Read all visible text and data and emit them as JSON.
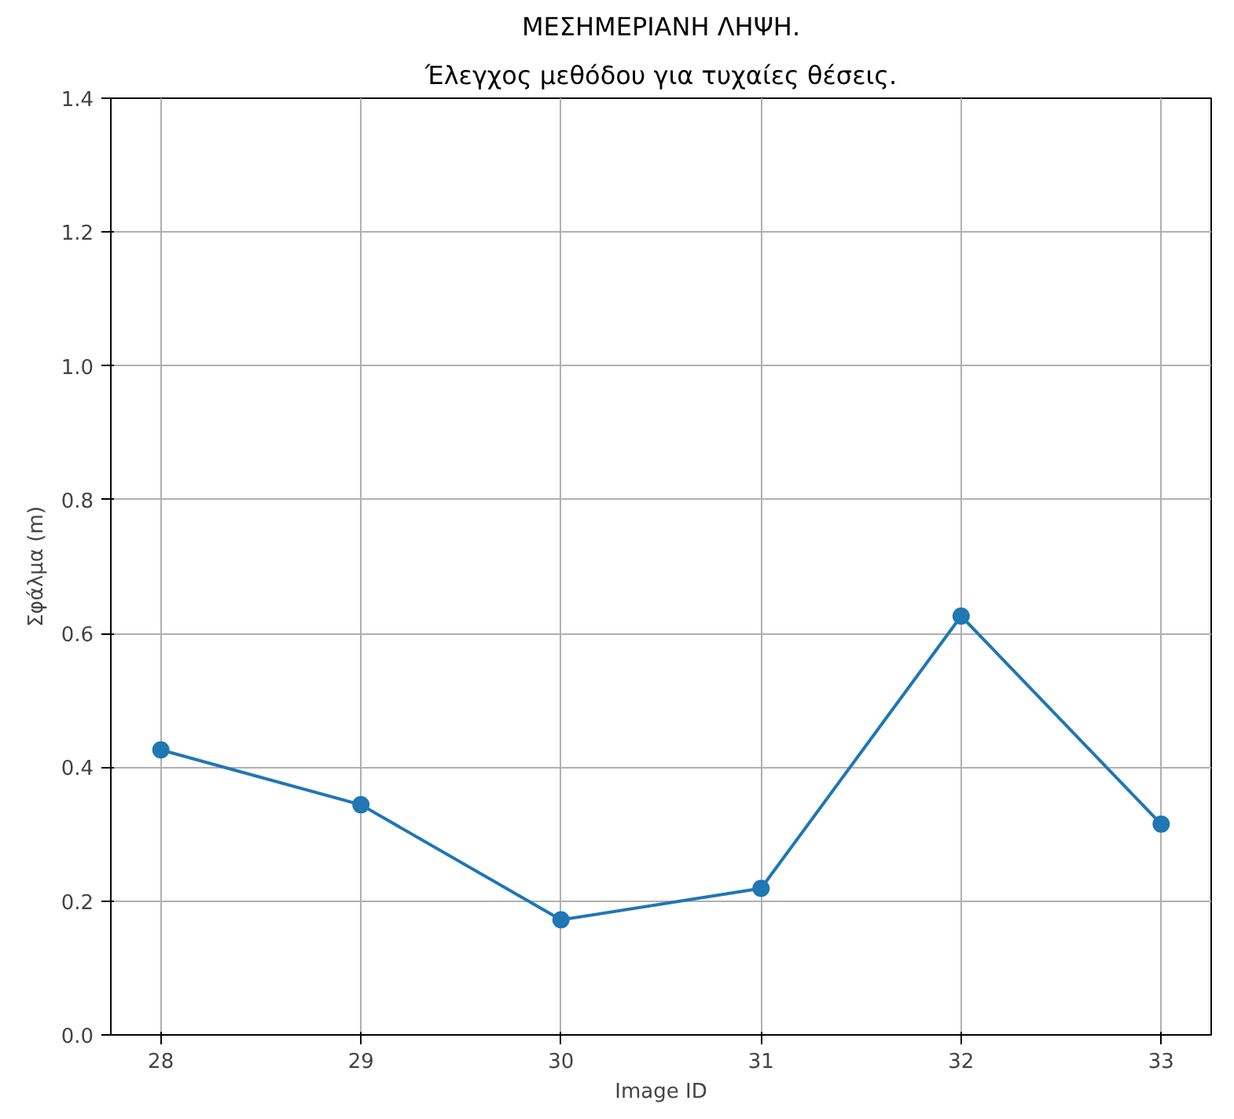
{
  "chart_data": {
    "type": "line",
    "title": "ΜΕΣΗΜΕΡΙΑΝΗ ΛΗΨΗ.",
    "subtitle": "Έλεγχος μεθόδου για τυχαίες θέσεις.",
    "xlabel": "Image ID",
    "ylabel": "Σφάλμα (m)",
    "x": [
      28,
      29,
      30,
      31,
      32,
      33
    ],
    "series": [
      {
        "color": "#1f77b4",
        "values": [
          0.426,
          0.344,
          0.172,
          0.219,
          0.626,
          0.315
        ]
      }
    ],
    "xlim": [
      27.75,
      33.25
    ],
    "xticks": [
      28,
      29,
      30,
      31,
      32,
      33
    ],
    "ylim": [
      0,
      1.4
    ],
    "yticks": [
      {
        "value": 0,
        "label": "0.0"
      },
      0.2,
      0.4,
      0.6,
      0.8,
      {
        "value": 1,
        "label": "1.0"
      },
      1.2,
      1.4
    ],
    "grid": true,
    "marker": "circle",
    "line_style": "solid"
  }
}
